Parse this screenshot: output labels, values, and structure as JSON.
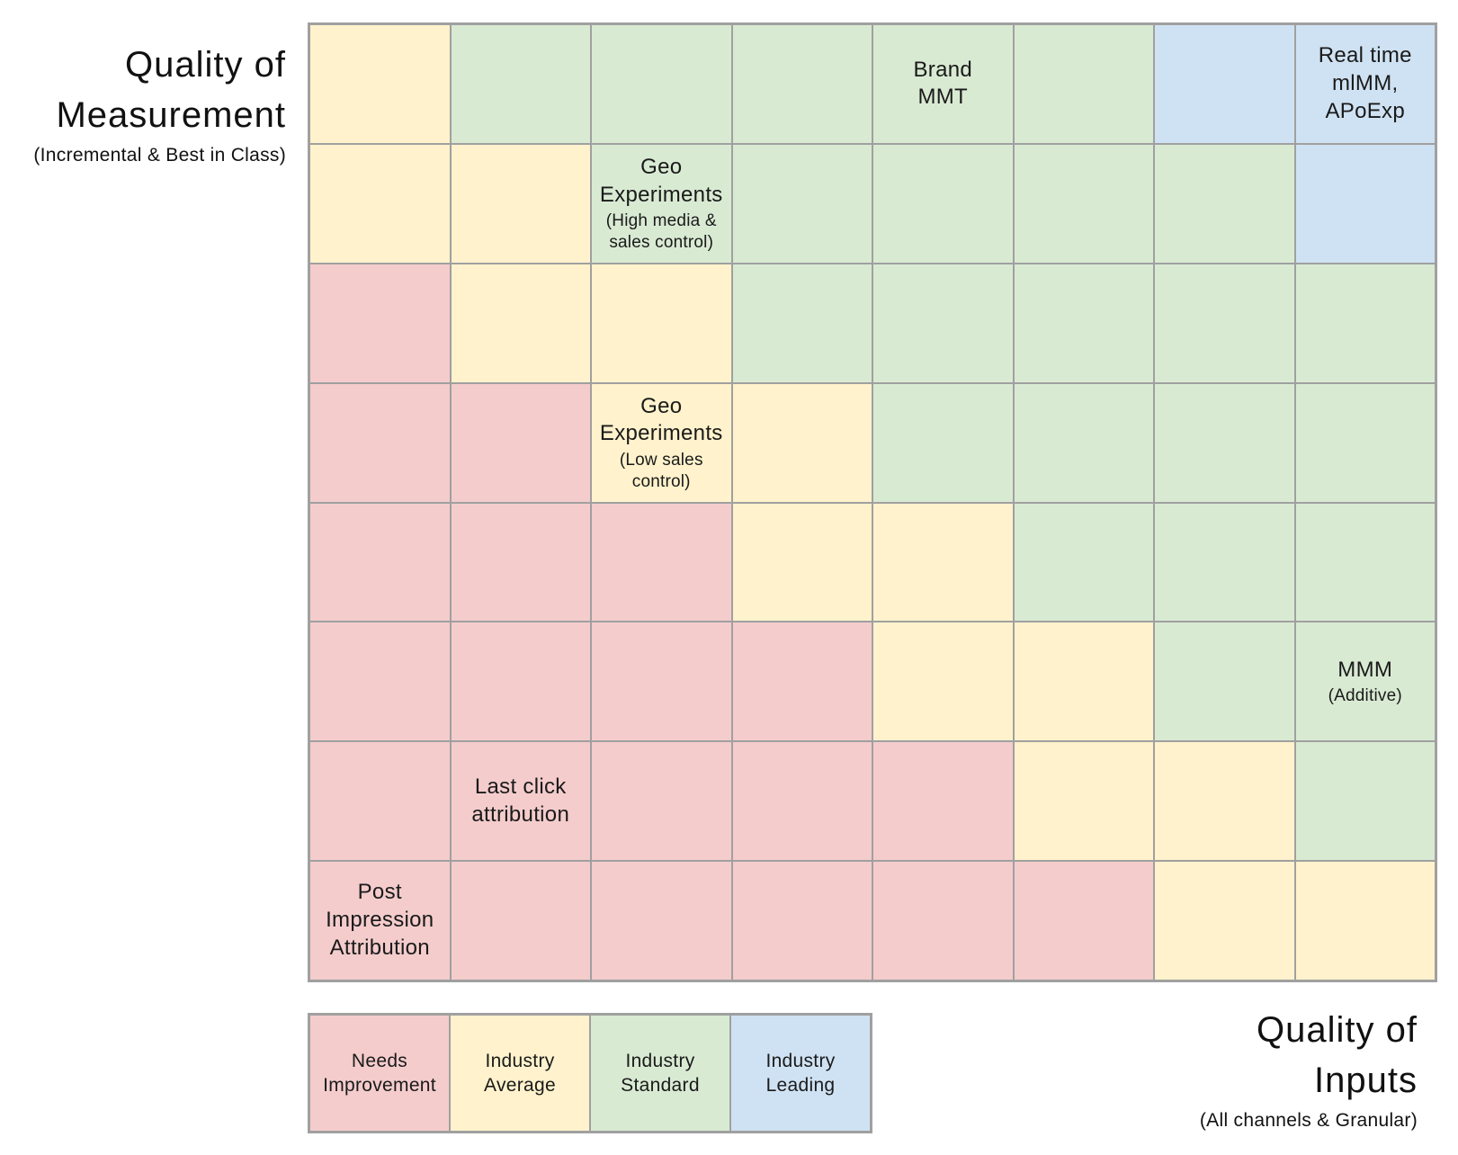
{
  "titles": {
    "measurement_axis": {
      "line1": "Quality of",
      "line2": "Measurement",
      "subtitle": "(Incremental & Best in Class)"
    },
    "inputs_axis": {
      "line1": "Quality of",
      "line2": "Inputs",
      "subtitle": "(All channels & Granular)"
    }
  },
  "colors": {
    "needs_improvement": "#F4CCCC",
    "industry_average": "#FFF2CC",
    "industry_standard": "#D9EAD3",
    "industry_leading": "#CFE2F3",
    "grid_line": "#A0A0A0"
  },
  "chart_data": {
    "type": "heatmap",
    "rows": 8,
    "cols": 8,
    "levels_legend": {
      "improvement": "Needs Improvement",
      "average": "Industry Average",
      "standard": "Industry Standard",
      "leading": "Industry Leading"
    },
    "cell_levels": [
      [
        "average",
        "standard",
        "standard",
        "standard",
        "standard",
        "standard",
        "leading",
        "leading"
      ],
      [
        "average",
        "average",
        "standard",
        "standard",
        "standard",
        "standard",
        "standard",
        "leading"
      ],
      [
        "improvement",
        "average",
        "average",
        "standard",
        "standard",
        "standard",
        "standard",
        "standard"
      ],
      [
        "improvement",
        "improvement",
        "average",
        "average",
        "standard",
        "standard",
        "standard",
        "standard"
      ],
      [
        "improvement",
        "improvement",
        "improvement",
        "average",
        "average",
        "standard",
        "standard",
        "standard"
      ],
      [
        "improvement",
        "improvement",
        "improvement",
        "improvement",
        "average",
        "average",
        "standard",
        "standard"
      ],
      [
        "improvement",
        "improvement",
        "improvement",
        "improvement",
        "improvement",
        "average",
        "average",
        "standard"
      ],
      [
        "improvement",
        "improvement",
        "improvement",
        "improvement",
        "improvement",
        "improvement",
        "average",
        "average"
      ]
    ],
    "annotations": [
      {
        "row": 0,
        "col": 4,
        "main": "Brand\nMMT"
      },
      {
        "row": 0,
        "col": 7,
        "main": "Real time\nmlMM,\nAPoExp"
      },
      {
        "row": 1,
        "col": 2,
        "main": "Geo\nExperiments",
        "sub": "(High media &\nsales control)"
      },
      {
        "row": 3,
        "col": 2,
        "main": "Geo\nExperiments",
        "sub": "(Low sales\ncontrol)"
      },
      {
        "row": 5,
        "col": 7,
        "main": "MMM",
        "sub": "(Additive)"
      },
      {
        "row": 6,
        "col": 1,
        "main": "Last click\nattribution"
      },
      {
        "row": 7,
        "col": 0,
        "main": "Post\nImpression\nAttribution"
      }
    ]
  },
  "legend": [
    {
      "level": "improvement",
      "label": "Needs\nImprovement"
    },
    {
      "level": "average",
      "label": "Industry\nAverage"
    },
    {
      "level": "standard",
      "label": "Industry\nStandard"
    },
    {
      "level": "leading",
      "label": "Industry\nLeading"
    }
  ]
}
